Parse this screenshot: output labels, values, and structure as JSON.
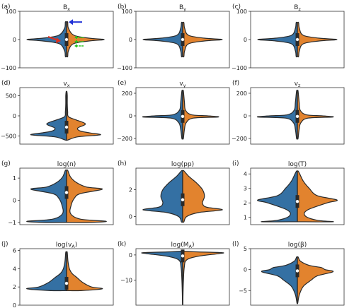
{
  "colors": {
    "left": "#3470a3",
    "right": "#e2832e",
    "outline": "#2a2a2a",
    "median": "#ffffff",
    "arrow_blue": "#1f2fd6",
    "arrow_red": "#e0301e",
    "arrow_green": "#28c21f"
  },
  "chart_data": [
    {
      "type": "violin",
      "panel": "(a)",
      "title": "B_x",
      "title_sub": "x",
      "title_base": "B",
      "ylim": [
        -100,
        100
      ],
      "yticks": [
        -100,
        0,
        100
      ],
      "tick_labels": [
        "−100",
        "0",
        "100"
      ],
      "shape": [
        [
          -60,
          0.03
        ],
        [
          -40,
          0.05
        ],
        [
          -15,
          0.18
        ],
        [
          -5,
          0.6
        ],
        [
          0,
          1.0
        ],
        [
          5,
          0.6
        ],
        [
          15,
          0.2
        ],
        [
          40,
          0.05
        ],
        [
          62,
          0.03
        ]
      ],
      "right_scale": 0.95,
      "median": 0,
      "arrows": [
        "blue",
        "red",
        "green"
      ]
    },
    {
      "type": "violin",
      "panel": "(b)",
      "title": "B_y",
      "title_sub": "y",
      "title_base": "B",
      "ylim": [
        -100,
        100
      ],
      "yticks": [
        -100,
        0,
        100
      ],
      "tick_labels": [
        "−100",
        "0",
        "100"
      ],
      "shape": [
        [
          -60,
          0.03
        ],
        [
          -40,
          0.05
        ],
        [
          -15,
          0.15
        ],
        [
          -5,
          0.55
        ],
        [
          0,
          1.0
        ],
        [
          5,
          0.55
        ],
        [
          15,
          0.15
        ],
        [
          40,
          0.05
        ],
        [
          60,
          0.03
        ]
      ],
      "right_scale": 1.0,
      "median": 0
    },
    {
      "type": "violin",
      "panel": "(c)",
      "title": "B_z",
      "title_sub": "z",
      "title_base": "B",
      "ylim": [
        -100,
        100
      ],
      "yticks": [
        -100,
        0,
        100
      ],
      "tick_labels": [
        "−100",
        "0",
        "100"
      ],
      "shape": [
        [
          -60,
          0.03
        ],
        [
          -40,
          0.05
        ],
        [
          -15,
          0.15
        ],
        [
          -5,
          0.55
        ],
        [
          0,
          1.0
        ],
        [
          5,
          0.55
        ],
        [
          15,
          0.15
        ],
        [
          40,
          0.05
        ],
        [
          60,
          0.03
        ]
      ],
      "right_scale": 1.0,
      "median": 0
    },
    {
      "type": "violin",
      "panel": "(d)",
      "title": "v_x",
      "title_sub": "x",
      "title_base": "v",
      "ylim": [
        -700,
        700
      ],
      "yticks": [
        -500,
        0,
        500
      ],
      "tick_labels": [
        "−500",
        "0",
        "500"
      ],
      "shape": [
        [
          -600,
          0.03
        ],
        [
          -520,
          0.3
        ],
        [
          -470,
          0.9
        ],
        [
          -420,
          0.6
        ],
        [
          -370,
          0.35
        ],
        [
          -300,
          0.3
        ],
        [
          -200,
          0.5
        ],
        [
          -100,
          0.25
        ],
        [
          -20,
          0.05
        ],
        [
          100,
          0.03
        ],
        [
          300,
          0.02
        ],
        [
          500,
          0.02
        ],
        [
          600,
          0.01
        ]
      ],
      "right_scale": 0.95,
      "median": -280
    },
    {
      "type": "violin",
      "panel": "(e)",
      "title": "v_y",
      "title_sub": "y",
      "title_base": "v",
      "ylim": [
        -250,
        250
      ],
      "yticks": [
        -200,
        0,
        200
      ],
      "tick_labels": [
        "−200",
        "0",
        "200"
      ],
      "shape": [
        [
          -200,
          0.02
        ],
        [
          -120,
          0.05
        ],
        [
          -60,
          0.1
        ],
        [
          -20,
          0.3
        ],
        [
          -10,
          1.0
        ],
        [
          0,
          0.7
        ],
        [
          10,
          0.25
        ],
        [
          50,
          0.08
        ],
        [
          120,
          0.05
        ],
        [
          220,
          0.02
        ]
      ],
      "right_scale": 0.9,
      "median": -5
    },
    {
      "type": "violin",
      "panel": "(f)",
      "title": "v_z",
      "title_sub": "z",
      "title_base": "v",
      "ylim": [
        -250,
        250
      ],
      "yticks": [
        -200,
        0,
        200
      ],
      "tick_labels": [
        "−200",
        "0",
        "200"
      ],
      "shape": [
        [
          -200,
          0.02
        ],
        [
          -120,
          0.05
        ],
        [
          -60,
          0.1
        ],
        [
          -20,
          0.3
        ],
        [
          -10,
          1.0
        ],
        [
          0,
          0.7
        ],
        [
          10,
          0.25
        ],
        [
          50,
          0.08
        ],
        [
          120,
          0.05
        ],
        [
          220,
          0.02
        ]
      ],
      "right_scale": 0.9,
      "median": -5
    },
    {
      "type": "violin",
      "panel": "(g)",
      "title": "log(n)",
      "title_sub": "",
      "title_base": "log(n)",
      "ylim": [
        -1.1,
        1.45
      ],
      "yticks": [
        -1,
        0,
        1
      ],
      "tick_labels": [
        "−1",
        "0",
        "1"
      ],
      "shape": [
        [
          -1.0,
          0.6
        ],
        [
          -0.95,
          1.0
        ],
        [
          -0.85,
          0.35
        ],
        [
          -0.6,
          0.1
        ],
        [
          -0.2,
          0.12
        ],
        [
          0.1,
          0.2
        ],
        [
          0.3,
          0.35
        ],
        [
          0.5,
          0.9
        ],
        [
          0.6,
          0.5
        ],
        [
          0.8,
          0.25
        ],
        [
          1.05,
          0.1
        ],
        [
          1.35,
          0.03
        ]
      ],
      "right_scale": 1.0,
      "median": 0.35
    },
    {
      "type": "violin",
      "panel": "(h)",
      "title": "log(pp)",
      "title_sub": "",
      "title_base": "log(pp)",
      "ylim": [
        -0.6,
        3.6
      ],
      "yticks": [
        0,
        2
      ],
      "tick_labels": [
        "0",
        "2"
      ],
      "shape": [
        [
          -0.4,
          0.03
        ],
        [
          0.0,
          0.1
        ],
        [
          0.3,
          0.4
        ],
        [
          0.5,
          1.0
        ],
        [
          0.7,
          0.6
        ],
        [
          1.0,
          0.5
        ],
        [
          1.5,
          0.55
        ],
        [
          2.0,
          0.5
        ],
        [
          2.5,
          0.35
        ],
        [
          3.0,
          0.15
        ],
        [
          3.4,
          0.03
        ]
      ],
      "right_scale": 1.0,
      "median": 1.25
    },
    {
      "type": "violin",
      "panel": "(i)",
      "title": "log(T)",
      "title_sub": "",
      "title_base": "log(T)",
      "ylim": [
        0.5,
        4.4
      ],
      "yticks": [
        1,
        2,
        3,
        4
      ],
      "tick_labels": [
        "1",
        "2",
        "3",
        "4"
      ],
      "shape": [
        [
          0.7,
          0.9
        ],
        [
          0.8,
          0.5
        ],
        [
          1.1,
          0.2
        ],
        [
          1.5,
          0.25
        ],
        [
          2.0,
          0.75
        ],
        [
          2.2,
          1.0
        ],
        [
          2.5,
          0.5
        ],
        [
          3.0,
          0.3
        ],
        [
          3.5,
          0.15
        ],
        [
          4.0,
          0.06
        ],
        [
          4.2,
          0.02
        ]
      ],
      "right_scale": 1.0,
      "median": 2.1
    },
    {
      "type": "violin",
      "panel": "(j)",
      "title": "log(v_A)",
      "title_sub": "A",
      "title_base": "log(v",
      "ylim": [
        0,
        6.2
      ],
      "yticks": [
        0,
        2,
        4,
        6
      ],
      "tick_labels": [
        "0",
        "2",
        "4",
        "6"
      ],
      "shape": [
        [
          1.6,
          0.4
        ],
        [
          1.8,
          1.0
        ],
        [
          2.0,
          0.7
        ],
        [
          2.5,
          0.45
        ],
        [
          3.0,
          0.3
        ],
        [
          3.5,
          0.15
        ],
        [
          4.0,
          0.08
        ],
        [
          4.8,
          0.04
        ],
        [
          5.8,
          0.02
        ]
      ],
      "right_scale": 0.9,
      "median": 2.4
    },
    {
      "type": "violin",
      "panel": "(k)",
      "title": "log(M_A)",
      "title_sub": "A",
      "title_base": "log(M",
      "ylim": [
        -20,
        2.5
      ],
      "yticks": [
        -10,
        0
      ],
      "tick_labels": [
        "−10",
        "0"
      ],
      "shape": [
        [
          -19.5,
          0.005
        ],
        [
          -15,
          0.01
        ],
        [
          -10,
          0.02
        ],
        [
          -5,
          0.04
        ],
        [
          -2,
          0.1
        ],
        [
          -0.5,
          0.4
        ],
        [
          0.5,
          0.9
        ],
        [
          0.9,
          1.0
        ],
        [
          1.2,
          0.4
        ],
        [
          1.5,
          0.05
        ]
      ],
      "right_scale": 1.0,
      "median": -0.4
    },
    {
      "type": "violin",
      "panel": "(l)",
      "title": "log(β)",
      "title_sub": "",
      "title_base": "log(β)",
      "ylim": [
        -8.5,
        5
      ],
      "yticks": [
        -5,
        0,
        5
      ],
      "tick_labels": [
        "−5",
        "0",
        "5"
      ],
      "shape": [
        [
          -8,
          0.01
        ],
        [
          -6,
          0.05
        ],
        [
          -4,
          0.15
        ],
        [
          -2.5,
          0.35
        ],
        [
          -1.5,
          0.5
        ],
        [
          -0.5,
          0.9
        ],
        [
          0.0,
          0.7
        ],
        [
          0.5,
          0.6
        ],
        [
          1.0,
          0.3
        ],
        [
          2.0,
          0.08
        ],
        [
          3.0,
          0.02
        ]
      ],
      "right_scale": 1.0,
      "median": -0.3
    }
  ]
}
